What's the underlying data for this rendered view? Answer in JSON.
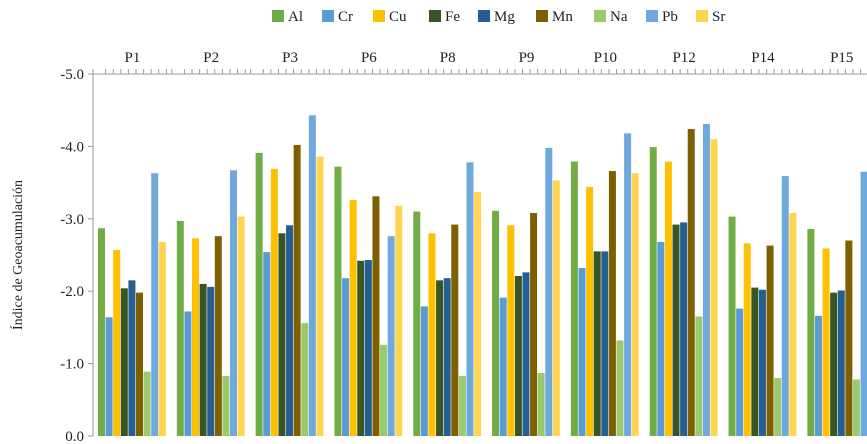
{
  "chart_data": {
    "type": "bar",
    "title": "",
    "ylabel": "Índice de Geoacumulación",
    "xlabel": "",
    "ylim": [
      0,
      -5
    ],
    "y_ticks": [
      "-5.0",
      "-4.0",
      "-3.0",
      "-2.0",
      "-1.0",
      "0.0"
    ],
    "y_tick_values": [
      -5,
      -4,
      -3,
      -2,
      -1,
      0
    ],
    "legend_position": "top",
    "categories": [
      "P1",
      "P2",
      "P3",
      "P6",
      "P8",
      "P9",
      "P10",
      "P12",
      "P14",
      "P15"
    ],
    "series": [
      {
        "name": "Al",
        "color": "#70ad47",
        "values": [
          -2.87,
          -2.97,
          -3.91,
          -3.72,
          -3.1,
          -3.11,
          -3.79,
          -3.99,
          -3.03,
          -2.86
        ]
      },
      {
        "name": "Cr",
        "color": "#5b9bd5",
        "values": [
          -1.64,
          -1.72,
          -2.54,
          -2.18,
          -1.79,
          -1.91,
          -2.32,
          -2.68,
          -1.76,
          -1.66
        ]
      },
      {
        "name": "Cu",
        "color": "#ffc000",
        "values": [
          -2.57,
          -2.73,
          -3.69,
          -3.26,
          -2.8,
          -2.91,
          -3.44,
          -3.79,
          -2.66,
          -2.59
        ]
      },
      {
        "name": "Fe",
        "color": "#375623",
        "values": [
          -2.04,
          -2.1,
          -2.8,
          -2.42,
          -2.15,
          -2.21,
          -2.55,
          -2.92,
          -2.05,
          -1.98
        ]
      },
      {
        "name": "Mg",
        "color": "#255e91",
        "values": [
          -2.15,
          -2.06,
          -2.91,
          -2.43,
          -2.18,
          -2.26,
          -2.55,
          -2.95,
          -2.02,
          -2.01
        ]
      },
      {
        "name": "Mn",
        "color": "#7f6000",
        "values": [
          -1.98,
          -2.76,
          -4.02,
          -3.31,
          -2.92,
          -3.08,
          -3.66,
          -4.24,
          -2.63,
          -2.7
        ]
      },
      {
        "name": "Na",
        "color": "#9bca6e",
        "values": [
          -0.89,
          -0.83,
          -1.56,
          -1.26,
          -0.83,
          -0.87,
          -1.32,
          -1.65,
          -0.8,
          -0.78
        ]
      },
      {
        "name": "Pb",
        "color": "#6fa8dc",
        "values": [
          -3.63,
          -3.67,
          -4.43,
          -2.76,
          -3.78,
          -3.98,
          -4.18,
          -4.31,
          -3.59,
          -3.65
        ]
      },
      {
        "name": "Sr",
        "color": "#ffd54f",
        "values": [
          -2.68,
          -3.03,
          -3.86,
          -3.18,
          -3.37,
          -3.53,
          -3.63,
          -4.1,
          -3.08,
          null
        ]
      }
    ]
  }
}
